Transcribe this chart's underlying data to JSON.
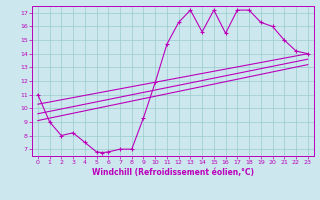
{
  "bg_color": "#cce8ee",
  "line_color": "#bb00bb",
  "grid_color": "#99cccc",
  "title": "Windchill (Refroidissement éolien,°C)",
  "xlim": [
    -0.5,
    23.5
  ],
  "ylim": [
    6.5,
    17.5
  ],
  "yticks": [
    7,
    8,
    9,
    10,
    11,
    12,
    13,
    14,
    15,
    16,
    17
  ],
  "xticks": [
    0,
    1,
    2,
    3,
    4,
    5,
    6,
    7,
    8,
    9,
    10,
    11,
    12,
    13,
    14,
    15,
    16,
    17,
    18,
    19,
    20,
    21,
    22,
    23
  ],
  "line1_x": [
    0,
    1,
    2,
    3,
    4,
    5,
    5.5,
    6,
    7,
    8,
    9,
    10,
    11,
    12,
    13,
    14,
    15,
    16,
    17,
    18,
    19,
    20,
    21,
    22,
    23
  ],
  "line1_y": [
    11,
    9,
    8,
    8.2,
    7.5,
    6.8,
    6.75,
    6.8,
    7.0,
    7.0,
    9.3,
    11.9,
    14.7,
    16.3,
    17.2,
    15.6,
    17.2,
    15.5,
    17.2,
    17.2,
    16.3,
    16.0,
    15.0,
    14.2,
    14.0
  ],
  "reg1_x0": 0,
  "reg1_y0": 10.3,
  "reg1_x1": 23,
  "reg1_y1": 14.0,
  "reg2_x0": 0,
  "reg2_y0": 9.6,
  "reg2_x1": 23,
  "reg2_y1": 13.6,
  "reg3_x0": 0,
  "reg3_y0": 9.1,
  "reg3_x1": 23,
  "reg3_y1": 13.2
}
